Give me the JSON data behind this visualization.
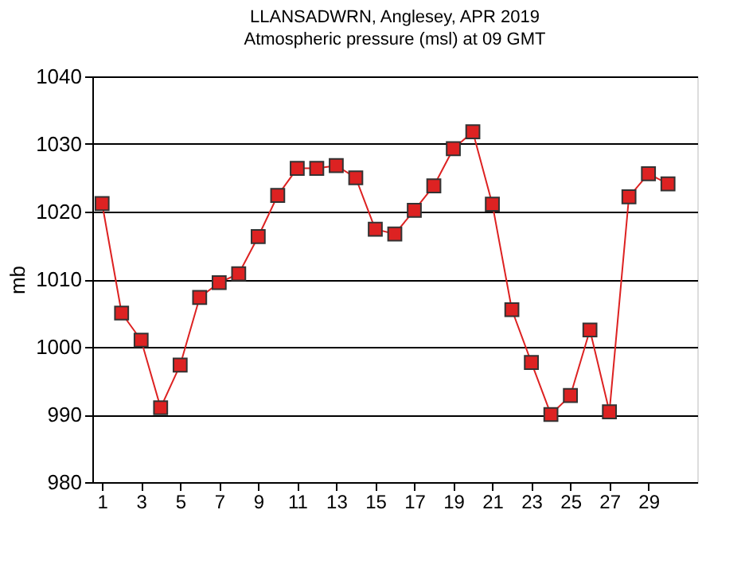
{
  "chart_data": {
    "type": "line",
    "title": "LLANSADWRN, Anglesey,  APR 2019",
    "subtitle": "Atmospheric pressure  (msl) at 09 GMT",
    "ylabel": "mb",
    "x": [
      1,
      2,
      3,
      4,
      5,
      6,
      7,
      8,
      9,
      10,
      11,
      12,
      13,
      14,
      15,
      16,
      17,
      18,
      19,
      20,
      21,
      22,
      23,
      24,
      25,
      26,
      27,
      28,
      29,
      30
    ],
    "series": [
      {
        "color": "#dd2222",
        "values": [
          1021.2,
          1005,
          1001,
          991,
          997.3,
          1007.3,
          1009.5,
          1010.8,
          1016.3,
          1022.4,
          1026.4,
          1026.4,
          1026.8,
          1025,
          1017.4,
          1016.7,
          1020.2,
          1023.8,
          1029.3,
          1031.8,
          1021.1,
          1005.5,
          997.7,
          990,
          992.8,
          1002.5,
          990.4,
          1022.2,
          1025.6,
          1024.1
        ]
      }
    ],
    "xlim": [
      0.5,
      31.5
    ],
    "xticks": [
      1,
      3,
      5,
      7,
      9,
      11,
      13,
      15,
      17,
      19,
      21,
      23,
      25,
      27,
      29
    ],
    "ylim": [
      980,
      1040
    ],
    "yticks": [
      980,
      990,
      1000,
      1010,
      1020,
      1030,
      1040
    ],
    "grid": "y",
    "marker": "square",
    "line_style": "solid",
    "legend": false
  }
}
